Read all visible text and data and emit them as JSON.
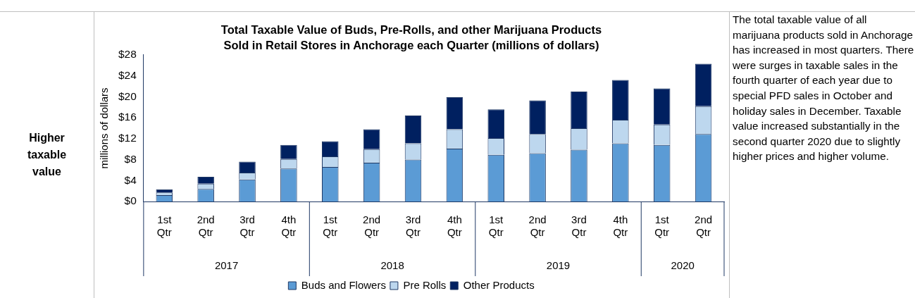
{
  "chart_data": {
    "type": "bar",
    "stacked": true,
    "title": "Total Taxable Value of Buds, Pre-Rolls, and other Marijuana Products\nSold in Retail Stores in Anchorage each Quarter (millions of dollars)",
    "ylabel": "millions of dollars",
    "categories": [
      "1st Qtr",
      "2nd Qtr",
      "3rd Qtr",
      "4th Qtr",
      "1st Qtr",
      "2nd Qtr",
      "3rd Qtr",
      "4th Qtr",
      "1st Qtr",
      "2nd Qtr",
      "3rd Qtr",
      "4th Qtr",
      "1st Qtr",
      "2nd Qtr"
    ],
    "series": [
      {
        "name": "Buds and Flowers",
        "color": "#5b9bd5",
        "values": [
          1.2,
          2.4,
          4.2,
          6.3,
          6.6,
          7.4,
          8.0,
          10.1,
          8.9,
          9.2,
          9.9,
          11.1,
          10.8,
          12.9
        ]
      },
      {
        "name": "Pre Rolls",
        "color": "#bdd7ee",
        "values": [
          0.5,
          1.0,
          1.3,
          1.8,
          2.0,
          2.6,
          3.1,
          3.7,
          3.2,
          3.7,
          4.1,
          4.5,
          3.9,
          5.3
        ]
      },
      {
        "name": "Other Products",
        "color": "#002060",
        "values": [
          0.6,
          1.3,
          2.1,
          2.7,
          2.9,
          3.8,
          5.3,
          6.1,
          5.5,
          6.4,
          7.0,
          7.6,
          6.9,
          8.1
        ]
      }
    ],
    "ylim": [
      0,
      28
    ],
    "yticks": [
      {
        "value": 0,
        "label": "$0"
      },
      {
        "value": 4,
        "label": "$4"
      },
      {
        "value": 8,
        "label": "$8"
      },
      {
        "value": 12,
        "label": "$12"
      },
      {
        "value": 16,
        "label": "$16"
      },
      {
        "value": 20,
        "label": "$20"
      },
      {
        "value": 24,
        "label": "$24"
      },
      {
        "value": 28,
        "label": "$28"
      }
    ],
    "grid": false,
    "legend": "bottom",
    "annotations": [
      "2017",
      "2018",
      "2019",
      "2020",
      "Higher taxable value",
      "The total taxable value of all marijuana products sold in Anchorage has increased in most quarters. There were surges in taxable sales in the fourth quarter of each year due to special PFD sales in October and holiday sales in December. Taxable value increased substantially in the second quarter 2020 due to slightly higher prices and higher volume."
    ]
  }
}
